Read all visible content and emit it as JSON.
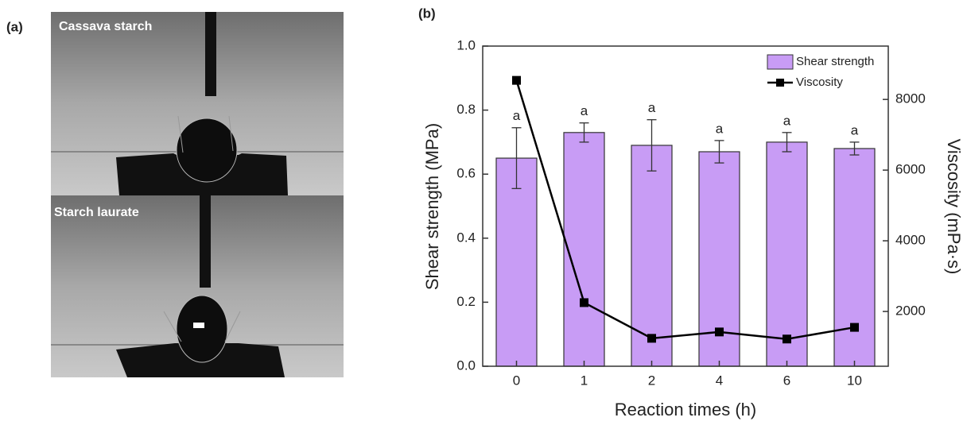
{
  "panel_a": {
    "label": "(a)",
    "images": [
      "Cassava starch",
      "Starch laurate"
    ]
  },
  "chart_data": {
    "type": "bar",
    "panel_label": "(b)",
    "x_label": "Reaction times (h)",
    "y_label": "Shear strength (MPa)",
    "y2_label": "Viscosity (mPa·s)",
    "categories": [
      "0",
      "1",
      "2",
      "4",
      "6",
      "10"
    ],
    "series": [
      {
        "name": "Shear strength",
        "type": "bar",
        "color": "#c89cf5",
        "values": [
          0.65,
          0.73,
          0.69,
          0.67,
          0.7,
          0.68
        ],
        "errors": [
          0.095,
          0.03,
          0.08,
          0.035,
          0.03,
          0.02
        ],
        "letters": [
          "a",
          "a",
          "a",
          "a",
          "a",
          "a"
        ]
      },
      {
        "name": "Viscosity",
        "type": "line",
        "color": "#000000",
        "axis": "y2",
        "values": [
          8540,
          2250,
          1240,
          1420,
          1220,
          1550
        ]
      }
    ],
    "ylim": [
      0,
      1
    ],
    "yticks": [
      {
        "value": 0,
        "label": "0.0"
      },
      0.2,
      0.4,
      0.6,
      0.8,
      {
        "value": 1,
        "label": "1.0"
      }
    ],
    "y2lim": [
      450,
      9510
    ],
    "y2ticks": [
      2000,
      4000,
      6000,
      8000
    ],
    "legend": "top-right"
  }
}
